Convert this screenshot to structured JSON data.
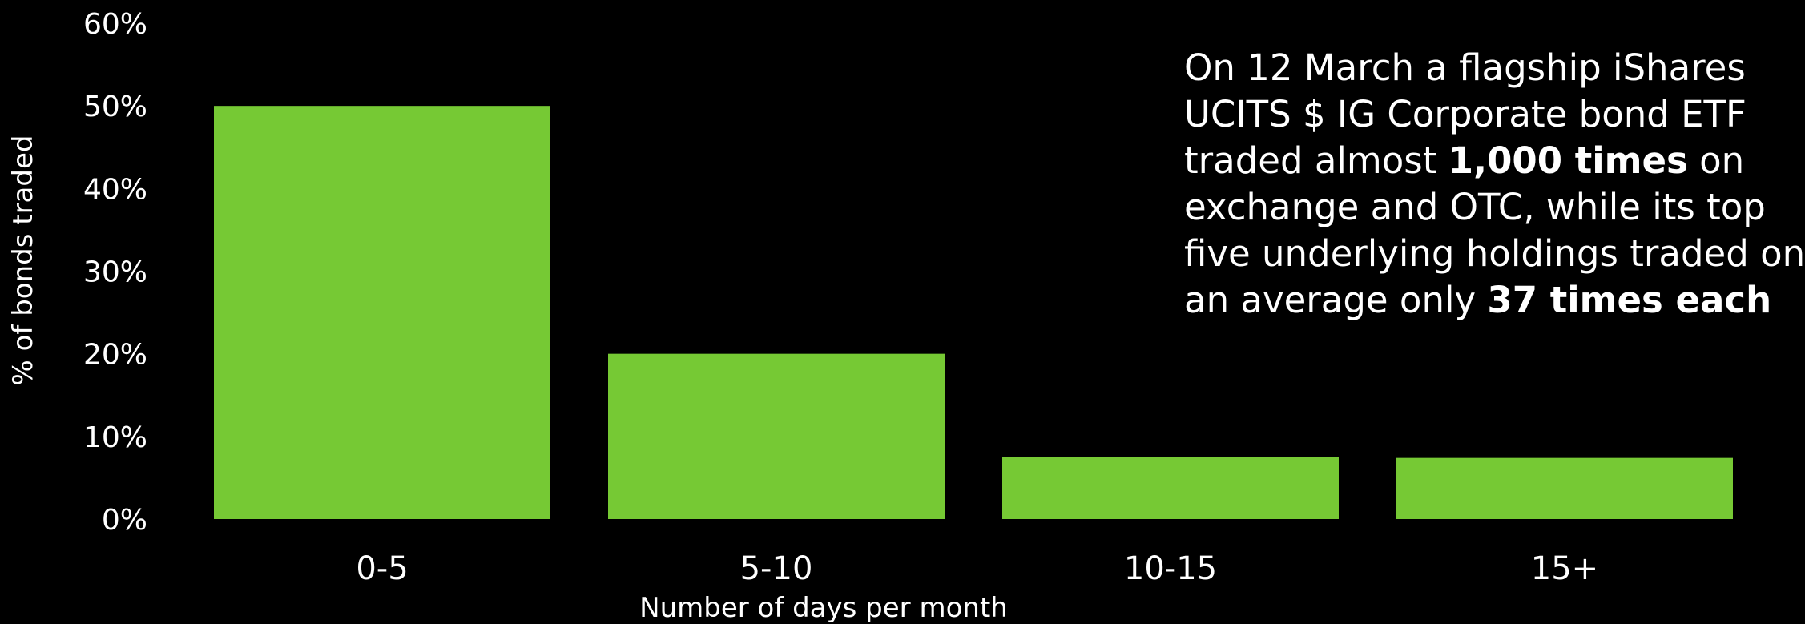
{
  "chart_data": {
    "type": "bar",
    "categories": [
      "0-5",
      "5-10",
      "10-15",
      "15+"
    ],
    "values": [
      50,
      20,
      7.5,
      7.4
    ],
    "ylim": [
      0,
      60
    ],
    "yticks": [
      "0%",
      "10%",
      "20%",
      "30%",
      "40%",
      "50%",
      "60%"
    ],
    "xlabel": "Number of  days per month",
    "ylabel": "% of bonds traded",
    "grid": false,
    "bar_color": "#76c934",
    "background": "#000000",
    "annotation": {
      "lines": [
        [
          {
            "text": "On 12 March a flagship iShares",
            "bold": false
          }
        ],
        [
          {
            "text": "UCITS $ IG Corporate bond ETF",
            "bold": false
          }
        ],
        [
          {
            "text": "traded almost ",
            "bold": false
          },
          {
            "text": "1,000 times",
            "bold": true
          },
          {
            "text": " on",
            "bold": false
          }
        ],
        [
          {
            "text": "exchange and OTC, while its top",
            "bold": false
          }
        ],
        [
          {
            "text": "five underlying holdings traded on",
            "bold": false
          }
        ],
        [
          {
            "text": "an average only ",
            "bold": false
          },
          {
            "text": "37 times each",
            "bold": true
          }
        ]
      ]
    }
  }
}
